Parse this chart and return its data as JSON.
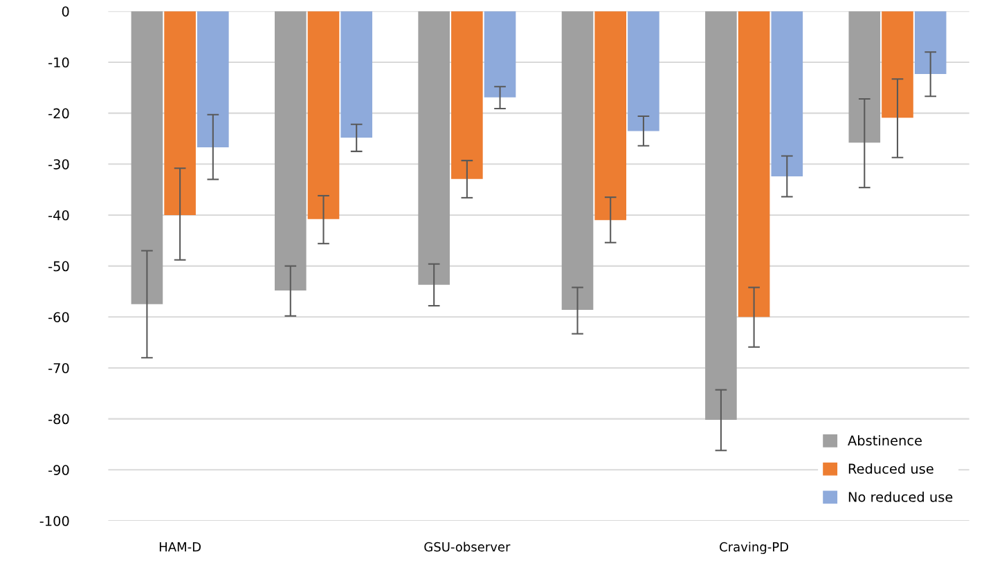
{
  "chart_data": {
    "type": "bar",
    "categories": [
      "HAM-D",
      null,
      "GSU-observer",
      null,
      "Craving-PD",
      null
    ],
    "series": [
      {
        "name": "Abstinence",
        "color": "#a0a0a0",
        "values": [
          -57.5,
          -54.8,
          -53.7,
          -58.6,
          -80.2,
          -25.8
        ],
        "errors": [
          [
            -68,
            -47
          ],
          [
            -59.8,
            -50
          ],
          [
            -57.8,
            -49.6
          ],
          [
            -63.3,
            -54.2
          ],
          [
            -86.2,
            -74.3
          ],
          [
            -34.6,
            -17.2
          ]
        ]
      },
      {
        "name": "Reduced use",
        "color": "#ed7d31",
        "values": [
          -40,
          -40.8,
          -32.9,
          -41,
          -60,
          -20.9
        ],
        "errors": [
          [
            -48.8,
            -30.8
          ],
          [
            -45.6,
            -36.2
          ],
          [
            -36.6,
            -29.3
          ],
          [
            -45.4,
            -36.5
          ],
          [
            -65.9,
            -54.2
          ],
          [
            -28.7,
            -13.3
          ]
        ]
      },
      {
        "name": "No reduced use",
        "color": "#8eaadb",
        "values": [
          -26.7,
          -24.8,
          -16.9,
          -23.5,
          -32.4,
          -12.3
        ],
        "errors": [
          [
            -33,
            -20.3
          ],
          [
            -27.5,
            -22.2
          ],
          [
            -19.1,
            -14.8
          ],
          [
            -26.4,
            -20.6
          ],
          [
            -36.4,
            -28.4
          ],
          [
            -16.7,
            -8
          ]
        ]
      }
    ],
    "ylim": [
      -100,
      0
    ],
    "yticks": [
      0,
      -10,
      -20,
      -30,
      -40,
      -50,
      -60,
      -70,
      -80,
      -90,
      -100
    ],
    "grid": "y",
    "legend": "bottom right"
  }
}
